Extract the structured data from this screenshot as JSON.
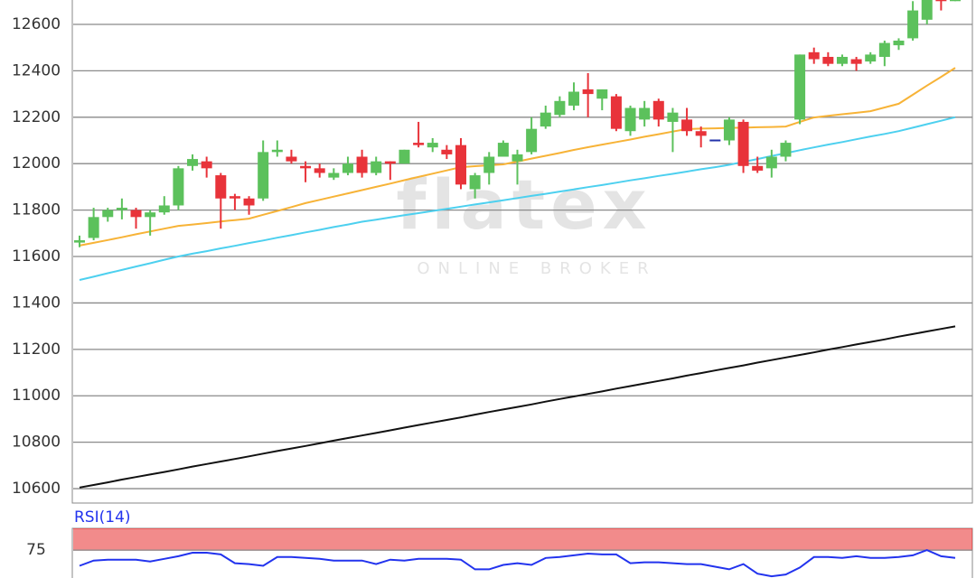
{
  "chart_data": [
    {
      "type": "candlestick",
      "watermark": {
        "title": "flatex",
        "subtitle": "ONLINE BROKER"
      },
      "open": [
        11660,
        11680,
        11770,
        11800,
        11800,
        11770,
        11790,
        11820,
        11990,
        12010,
        11950,
        11860,
        11850,
        11850,
        12050,
        12030,
        11990,
        11980,
        11940,
        11960,
        12030,
        11960,
        12010,
        12000,
        12090,
        12070,
        12060,
        12080,
        11890,
        11960,
        12030,
        12010,
        12050,
        12160,
        12210,
        12250,
        12320,
        12280,
        12290,
        12140,
        12190,
        12270,
        12180,
        12190,
        12140,
        12100,
        12100,
        12180,
        11990,
        11980,
        12030,
        12190,
        12480,
        12460,
        12430,
        12450,
        12440,
        12460,
        12510,
        12540,
        12620,
        12720,
        12700
      ],
      "high": [
        11690,
        11810,
        11810,
        11850,
        11810,
        11800,
        11860,
        11990,
        12040,
        12030,
        11960,
        11870,
        11860,
        12100,
        12100,
        12060,
        12010,
        12000,
        11980,
        12030,
        12060,
        12030,
        12010,
        12060,
        12180,
        12110,
        12080,
        12110,
        11960,
        12050,
        12100,
        12060,
        12200,
        12250,
        12290,
        12350,
        12390,
        12320,
        12300,
        12250,
        12270,
        12280,
        12240,
        12240,
        12160,
        12100,
        12200,
        12190,
        12030,
        12060,
        12100,
        12470,
        12500,
        12480,
        12470,
        12460,
        12480,
        12530,
        12540,
        12700,
        12720,
        12720,
        12720
      ],
      "low": [
        11640,
        11670,
        11750,
        11760,
        11720,
        11690,
        11780,
        11800,
        11970,
        11940,
        11720,
        11800,
        11780,
        11840,
        12030,
        12000,
        11920,
        11940,
        11930,
        11950,
        11940,
        11950,
        11930,
        12000,
        12070,
        12050,
        12020,
        11890,
        11850,
        11910,
        12030,
        11910,
        12040,
        12150,
        12200,
        12230,
        12200,
        12230,
        12140,
        12120,
        12160,
        12160,
        12050,
        12120,
        12070,
        12100,
        12080,
        11960,
        11960,
        11940,
        12010,
        12170,
        12430,
        12420,
        12420,
        12400,
        12430,
        12420,
        12490,
        12530,
        12600,
        12660,
        12700
      ],
      "close": [
        11670,
        11770,
        11800,
        11810,
        11770,
        11790,
        11820,
        11980,
        12020,
        11980,
        11850,
        11850,
        11820,
        12050,
        12060,
        12010,
        11980,
        11960,
        11960,
        12000,
        11960,
        12010,
        12000,
        12060,
        12080,
        12090,
        12040,
        11910,
        11950,
        12030,
        12090,
        12040,
        12150,
        12220,
        12270,
        12310,
        12300,
        12320,
        12150,
        12240,
        12240,
        12190,
        12220,
        12140,
        12120,
        12100,
        12190,
        11990,
        11970,
        12030,
        12090,
        12470,
        12450,
        12430,
        12460,
        12430,
        12470,
        12520,
        12530,
        12660,
        12720,
        12700,
        12710
      ],
      "up_color": "#5cc15c",
      "down_color": "#e8333a",
      "flat_color": "#2233aa",
      "lines": [
        {
          "color": "#f7b337",
          "values": [
            11647,
            11659,
            11671,
            11683,
            11696,
            11708,
            11720,
            11732,
            11738,
            11744,
            11751,
            11757,
            11763,
            11780,
            11796,
            11813,
            11830,
            11844,
            11858,
            11872,
            11886,
            11900,
            11914,
            11929,
            11943,
            11957,
            11971,
            11985,
            11989,
            11993,
            11997,
            12009,
            12022,
            12034,
            12046,
            12059,
            12071,
            12082,
            12093,
            12104,
            12116,
            12127,
            12138,
            12149,
            12151,
            12152,
            12154,
            12155,
            12157,
            12158,
            12160,
            12180,
            12199,
            12206,
            12213,
            12219,
            12226,
            12242,
            12258,
            12297,
            12336,
            12374,
            12413
          ]
        },
        {
          "color": "#4dd0ef",
          "values": [
            11499,
            11513,
            11528,
            11542,
            11557,
            11571,
            11586,
            11600,
            11612,
            11623,
            11635,
            11646,
            11658,
            11669,
            11681,
            11692,
            11704,
            11715,
            11727,
            11738,
            11750,
            11759,
            11768,
            11778,
            11787,
            11796,
            11805,
            11815,
            11824,
            11833,
            11842,
            11852,
            11861,
            11870,
            11880,
            11889,
            11899,
            11908,
            11918,
            11928,
            11937,
            11947,
            11956,
            11966,
            11976,
            11985,
            11995,
            12008,
            12020,
            12033,
            12045,
            12058,
            12070,
            12082,
            12093,
            12105,
            12117,
            12128,
            12140,
            12155,
            12170,
            12185,
            12200
          ]
        },
        {
          "color": "#111111",
          "values": [
            10605,
            10616,
            10627,
            10639,
            10650,
            10661,
            10672,
            10683,
            10695,
            10706,
            10717,
            10728,
            10739,
            10751,
            10762,
            10773,
            10784,
            10795,
            10807,
            10818,
            10829,
            10840,
            10851,
            10863,
            10874,
            10885,
            10896,
            10907,
            10919,
            10930,
            10941,
            10952,
            10963,
            10975,
            10986,
            10997,
            11008,
            11019,
            11031,
            11042,
            11053,
            11064,
            11075,
            11087,
            11098,
            11109,
            11120,
            11131,
            11143,
            11154,
            11165,
            11176,
            11187,
            11199,
            11210,
            11221,
            11232,
            11243,
            11255,
            11266,
            11277,
            11288,
            11299
          ]
        }
      ],
      "ylim": [
        10538,
        12705
      ],
      "yticks": [
        10600,
        10800,
        11000,
        11200,
        11400,
        11600,
        11800,
        12000,
        12200,
        12400,
        12600
      ],
      "grid": true
    },
    {
      "type": "line",
      "title": "RSI(14)",
      "color": "#2233ee",
      "values": [
        57,
        63,
        64,
        64,
        64,
        62,
        65,
        68,
        72,
        72,
        70,
        60,
        59,
        57,
        67,
        67,
        66,
        65,
        63,
        63,
        63,
        59,
        64,
        63,
        65,
        65,
        65,
        64,
        53,
        53,
        58,
        60,
        58,
        66,
        67,
        69,
        71,
        70,
        70,
        60,
        61,
        61,
        60,
        59,
        59,
        56,
        53,
        59,
        48,
        45,
        47,
        55,
        67,
        67,
        66,
        68,
        66,
        66,
        67,
        69,
        75,
        68,
        66
      ],
      "band": [
        75,
        100
      ],
      "band_color": "#f28b8b",
      "ylim": [
        43,
        100
      ],
      "yticks": [
        75
      ],
      "grid": true
    }
  ]
}
